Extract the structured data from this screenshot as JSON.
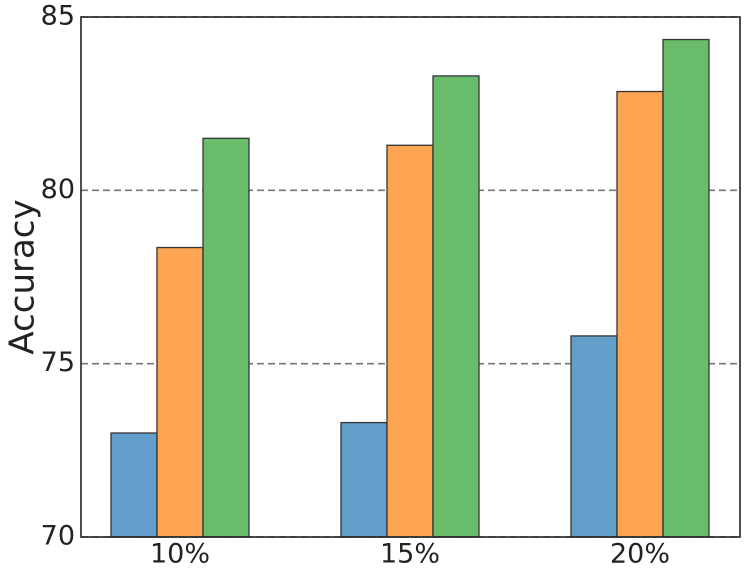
{
  "chart_data": {
    "type": "bar",
    "y_label": "Accuracy",
    "categories": [
      "10%",
      "15%",
      "20%"
    ],
    "series": [
      {
        "color": "#619fca",
        "values": [
          73.0,
          73.3,
          75.8
        ]
      },
      {
        "color": "#fea553",
        "values": [
          78.35,
          81.3,
          82.85
        ]
      },
      {
        "color": "#69bc6a",
        "values": [
          81.5,
          83.3,
          84.35
        ]
      }
    ],
    "ylim": [
      70,
      85
    ],
    "yticks": [
      70,
      75,
      80,
      85
    ],
    "grid": true
  }
}
